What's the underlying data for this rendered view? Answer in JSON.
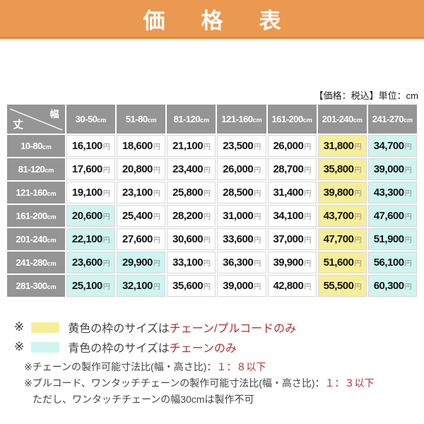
{
  "banner": {
    "title": "価　格　表"
  },
  "table_note": "【価格：税込】単位：cm",
  "price_table": {
    "corner": {
      "top_right_label": "幅",
      "bottom_left_label": "丈"
    },
    "unit_col": "cm",
    "unit_price": "円",
    "col_headers": [
      "30-50",
      "51-80",
      "81-120",
      "121-160",
      "161-200",
      "201-240",
      "241-270"
    ],
    "rows": [
      {
        "header": "10-80",
        "cells": [
          {
            "value": "16,100",
            "bg": "none"
          },
          {
            "value": "18,600",
            "bg": "none"
          },
          {
            "value": "21,100",
            "bg": "none"
          },
          {
            "value": "23,500",
            "bg": "none"
          },
          {
            "value": "26,000",
            "bg": "none"
          },
          {
            "value": "31,800",
            "bg": "yellow"
          },
          {
            "value": "34,700",
            "bg": "cyan"
          }
        ]
      },
      {
        "header": "81-120",
        "cells": [
          {
            "value": "17,600",
            "bg": "none"
          },
          {
            "value": "20,800",
            "bg": "none"
          },
          {
            "value": "23,400",
            "bg": "none"
          },
          {
            "value": "26,000",
            "bg": "none"
          },
          {
            "value": "28,700",
            "bg": "none"
          },
          {
            "value": "35,800",
            "bg": "yellow"
          },
          {
            "value": "39,000",
            "bg": "cyan"
          }
        ]
      },
      {
        "header": "121-160",
        "cells": [
          {
            "value": "19,100",
            "bg": "none"
          },
          {
            "value": "23,100",
            "bg": "none"
          },
          {
            "value": "25,800",
            "bg": "none"
          },
          {
            "value": "28,500",
            "bg": "none"
          },
          {
            "value": "31,400",
            "bg": "none"
          },
          {
            "value": "39,800",
            "bg": "yellow"
          },
          {
            "value": "43,300",
            "bg": "cyan"
          }
        ]
      },
      {
        "header": "161-200",
        "cells": [
          {
            "value": "20,600",
            "bg": "cyan"
          },
          {
            "value": "25,400",
            "bg": "none"
          },
          {
            "value": "28,200",
            "bg": "none"
          },
          {
            "value": "31,000",
            "bg": "none"
          },
          {
            "value": "34,100",
            "bg": "none"
          },
          {
            "value": "43,700",
            "bg": "yellow"
          },
          {
            "value": "47,600",
            "bg": "cyan"
          }
        ]
      },
      {
        "header": "201-240",
        "cells": [
          {
            "value": "22,100",
            "bg": "cyan"
          },
          {
            "value": "27,600",
            "bg": "none"
          },
          {
            "value": "30,600",
            "bg": "none"
          },
          {
            "value": "33,600",
            "bg": "none"
          },
          {
            "value": "37,000",
            "bg": "none"
          },
          {
            "value": "47,700",
            "bg": "yellow"
          },
          {
            "value": "51,900",
            "bg": "cyan"
          }
        ]
      },
      {
        "header": "241-280",
        "cells": [
          {
            "value": "23,600",
            "bg": "cyan"
          },
          {
            "value": "29,900",
            "bg": "cyan"
          },
          {
            "value": "33,100",
            "bg": "none"
          },
          {
            "value": "36,300",
            "bg": "none"
          },
          {
            "value": "39,900",
            "bg": "none"
          },
          {
            "value": "51,600",
            "bg": "yellow"
          },
          {
            "value": "56,100",
            "bg": "cyan"
          }
        ]
      },
      {
        "header": "281-300",
        "cells": [
          {
            "value": "25,100",
            "bg": "cyan"
          },
          {
            "value": "32,100",
            "bg": "cyan"
          },
          {
            "value": "35,600",
            "bg": "none"
          },
          {
            "value": "39,000",
            "bg": "none"
          },
          {
            "value": "42,800",
            "bg": "none"
          },
          {
            "value": "55,500",
            "bg": "yellow"
          },
          {
            "value": "60,300",
            "bg": "cyan"
          }
        ]
      }
    ]
  },
  "legend": [
    {
      "marker": "※",
      "swatch_color": "#F7EE99",
      "text": "黄色の枠のサイズは",
      "red_text": "チェーン/プルコードのみ"
    },
    {
      "marker": "※",
      "swatch_color": "#CFF4F0",
      "text": "青色の枠のサイズは",
      "red_text": "チェーンのみ"
    }
  ],
  "notes": [
    {
      "text": "※チェーンの製作可能寸法比(幅・高さ比)：",
      "red_text": "１：８以下",
      "indent": 1
    },
    {
      "text": "※プルコード、ワンタッチチェーンの製作可能寸法比(幅・高さ比)：",
      "red_text": "１：３以下",
      "indent": 1
    },
    {
      "text": "ただし、ワンタッチチェーンの幅30cmは製作不可",
      "red_text": "",
      "indent": 2
    }
  ],
  "colors": {
    "banner_orange": "#EB9850",
    "banner_border": "#E1873B",
    "header_gray": "#959595",
    "highlight_yellow": "#F7EE99",
    "highlight_cyan": "#CFF4F0",
    "accent_red": "#B03030",
    "cell_border": "#D6D6D6"
  }
}
